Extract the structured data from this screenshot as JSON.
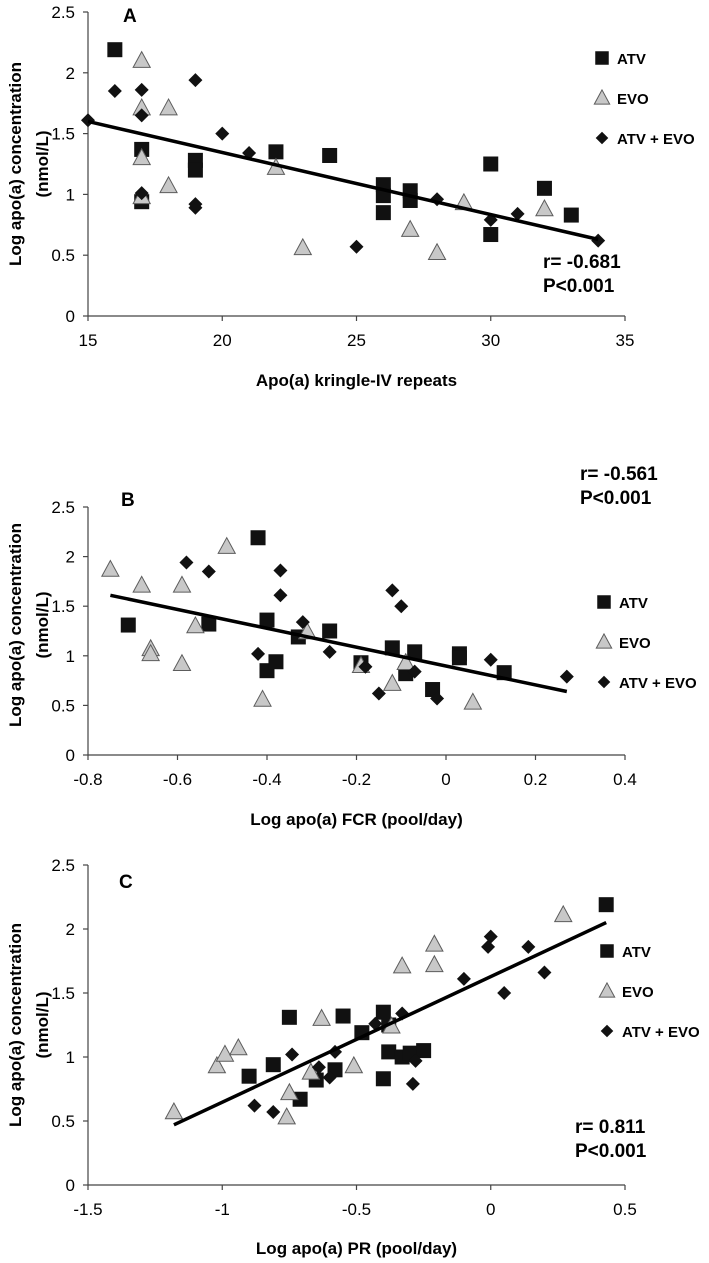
{
  "colors": {
    "atv": "#111111",
    "evo": "#c8c8c8",
    "evo_dark": "#a4a4a4",
    "combo": "#111111",
    "line": "#000000"
  },
  "chart_data": [
    {
      "type": "scatter",
      "panel": "A",
      "xlabel": "Apo(a) kringle-IV repeats",
      "ylabel": [
        "Log apo(a) concentration",
        "(nmol/L)"
      ],
      "xlim": [
        15,
        35
      ],
      "ylim": [
        0,
        2.5
      ],
      "xticks": [
        15,
        20,
        25,
        30,
        35
      ],
      "xtick_labels": [
        "15",
        "20",
        "25",
        "30",
        "35"
      ],
      "yticks": [
        0,
        0.5,
        1,
        1.5,
        2,
        2.5
      ],
      "ytick_labels": [
        "0",
        "0.5",
        "1",
        "1.5",
        "2",
        "2.5"
      ],
      "stats": {
        "r": "r=  -0.681",
        "p": "P<0.001",
        "position": "bottom-right"
      },
      "legend_position": "top-right",
      "trendline": {
        "x": [
          15,
          34
        ],
        "y": [
          1.6,
          0.63
        ]
      },
      "series": [
        {
          "name": "ATV",
          "marker": "square",
          "points": [
            [
              16,
              2.19
            ],
            [
              17,
              1.37
            ],
            [
              17,
              0.94
            ],
            [
              19,
              1.28
            ],
            [
              19,
              1.2
            ],
            [
              22,
              1.35
            ],
            [
              24,
              1.32
            ],
            [
              26,
              1.08
            ],
            [
              26,
              0.99
            ],
            [
              26,
              0.85
            ],
            [
              27,
              1.03
            ],
            [
              27,
              0.95
            ],
            [
              30,
              1.25
            ],
            [
              30,
              0.67
            ],
            [
              32,
              1.05
            ],
            [
              33,
              0.83
            ]
          ]
        },
        {
          "name": "EVO",
          "marker": "triangle",
          "points": [
            [
              17,
              2.1
            ],
            [
              17,
              1.71
            ],
            [
              17,
              1.3
            ],
            [
              17,
              0.98
            ],
            [
              18,
              1.71
            ],
            [
              18,
              1.07
            ],
            [
              22,
              1.22
            ],
            [
              23,
              0.56
            ],
            [
              27,
              0.71
            ],
            [
              28,
              0.52
            ],
            [
              29,
              0.93
            ],
            [
              32,
              0.88
            ]
          ]
        },
        {
          "name": "ATV + EVO",
          "marker": "diamond",
          "points": [
            [
              15,
              1.61
            ],
            [
              16,
              1.85
            ],
            [
              17,
              1.86
            ],
            [
              17,
              1.65
            ],
            [
              17,
              1.01
            ],
            [
              19,
              1.94
            ],
            [
              19,
              0.89
            ],
            [
              19,
              0.92
            ],
            [
              20,
              1.5
            ],
            [
              21,
              1.34
            ],
            [
              25,
              0.57
            ],
            [
              28,
              0.96
            ],
            [
              30,
              0.79
            ],
            [
              31,
              0.84
            ],
            [
              34,
              0.62
            ]
          ]
        }
      ]
    },
    {
      "type": "scatter",
      "panel": "B",
      "xlabel": "Log apo(a) FCR (pool/day)",
      "ylabel": [
        "Log apo(a) concentration",
        "(nmol/L)"
      ],
      "xlim": [
        -0.8,
        0.4
      ],
      "ylim": [
        0,
        2.5
      ],
      "xticks": [
        -0.8,
        -0.6,
        -0.4,
        -0.2,
        0,
        0.2,
        0.4
      ],
      "xtick_labels": [
        "-0.8",
        "-0.6",
        "-0.4",
        "-0.2",
        "0",
        "0.2",
        "0.4"
      ],
      "yticks": [
        0,
        0.5,
        1,
        1.5,
        2,
        2.5
      ],
      "ytick_labels": [
        "0",
        "0.5",
        "1",
        "1.5",
        "2",
        "2.5"
      ],
      "stats": {
        "r": "r=  -0.561",
        "p": "P<0.001",
        "position": "top-right"
      },
      "legend_position": "right",
      "trendline": {
        "x": [
          -0.75,
          0.27
        ],
        "y": [
          1.61,
          0.64
        ]
      },
      "series": [
        {
          "name": "ATV",
          "marker": "square",
          "points": [
            [
              -0.71,
              1.31
            ],
            [
              -0.53,
              1.32
            ],
            [
              -0.42,
              2.19
            ],
            [
              -0.4,
              1.36
            ],
            [
              -0.4,
              0.85
            ],
            [
              -0.38,
              0.94
            ],
            [
              -0.33,
              1.19
            ],
            [
              -0.26,
              1.25
            ],
            [
              -0.19,
              0.93
            ],
            [
              -0.12,
              1.08
            ],
            [
              -0.09,
              0.82
            ],
            [
              -0.07,
              1.04
            ],
            [
              -0.03,
              0.66
            ],
            [
              0.03,
              1.02
            ],
            [
              0.03,
              0.98
            ],
            [
              0.13,
              0.83
            ]
          ]
        },
        {
          "name": "EVO",
          "marker": "triangle",
          "points": [
            [
              -0.75,
              1.87
            ],
            [
              -0.68,
              1.71
            ],
            [
              -0.66,
              1.07
            ],
            [
              -0.66,
              1.02
            ],
            [
              -0.59,
              1.71
            ],
            [
              -0.59,
              0.92
            ],
            [
              -0.56,
              1.3
            ],
            [
              -0.49,
              2.1
            ],
            [
              -0.41,
              0.56
            ],
            [
              -0.31,
              1.24
            ],
            [
              -0.19,
              0.9
            ],
            [
              -0.12,
              0.72
            ],
            [
              -0.09,
              0.93
            ],
            [
              0.06,
              0.53
            ]
          ]
        },
        {
          "name": "ATV + EVO",
          "marker": "diamond",
          "points": [
            [
              -0.58,
              1.94
            ],
            [
              -0.53,
              1.85
            ],
            [
              -0.42,
              1.02
            ],
            [
              -0.37,
              1.86
            ],
            [
              -0.37,
              1.61
            ],
            [
              -0.32,
              1.34
            ],
            [
              -0.26,
              1.04
            ],
            [
              -0.18,
              0.89
            ],
            [
              -0.15,
              0.62
            ],
            [
              -0.12,
              1.66
            ],
            [
              -0.1,
              1.5
            ],
            [
              -0.07,
              0.84
            ],
            [
              -0.02,
              0.57
            ],
            [
              0.1,
              0.96
            ],
            [
              0.27,
              0.79
            ]
          ]
        }
      ]
    },
    {
      "type": "scatter",
      "panel": "C",
      "xlabel": "Log apo(a) PR (pool/day)",
      "ylabel": [
        "Log apo(a) concentration",
        "(nmol/L)"
      ],
      "xlim": [
        -1.5,
        0.5
      ],
      "ylim": [
        0,
        2.5
      ],
      "xticks": [
        -1.5,
        -1,
        -0.5,
        0,
        0.5
      ],
      "xtick_labels": [
        "-1.5",
        "-1",
        "-0.5",
        "0",
        "0.5"
      ],
      "yticks": [
        0,
        0.5,
        1,
        1.5,
        2,
        2.5
      ],
      "ytick_labels": [
        "0",
        "0.5",
        "1",
        "1.5",
        "2",
        "2.5"
      ],
      "stats": {
        "r": "r=  0.811",
        "p": "P<0.001",
        "position": "bottom-right"
      },
      "legend_position": "right",
      "trendline": {
        "x": [
          -1.18,
          0.43
        ],
        "y": [
          0.47,
          2.05
        ]
      },
      "series": [
        {
          "name": "ATV",
          "marker": "square",
          "points": [
            [
              -0.9,
              0.85
            ],
            [
              -0.81,
              0.94
            ],
            [
              -0.75,
              1.31
            ],
            [
              -0.71,
              0.67
            ],
            [
              -0.65,
              0.82
            ],
            [
              -0.58,
              0.9
            ],
            [
              -0.55,
              1.32
            ],
            [
              -0.48,
              1.19
            ],
            [
              -0.4,
              1.35
            ],
            [
              -0.4,
              0.83
            ],
            [
              -0.38,
              1.25
            ],
            [
              -0.38,
              1.04
            ],
            [
              -0.33,
              1.0
            ],
            [
              -0.3,
              1.03
            ],
            [
              -0.25,
              1.05
            ],
            [
              0.43,
              2.19
            ]
          ]
        },
        {
          "name": "EVO",
          "marker": "triangle",
          "points": [
            [
              -1.18,
              0.57
            ],
            [
              -1.02,
              0.93
            ],
            [
              -0.99,
              1.02
            ],
            [
              -0.94,
              1.07
            ],
            [
              -0.76,
              0.53
            ],
            [
              -0.75,
              0.72
            ],
            [
              -0.67,
              0.88
            ],
            [
              -0.63,
              1.3
            ],
            [
              -0.51,
              0.93
            ],
            [
              -0.37,
              1.24
            ],
            [
              -0.33,
              1.71
            ],
            [
              -0.21,
              1.72
            ],
            [
              -0.21,
              1.88
            ],
            [
              0.27,
              2.11
            ]
          ]
        },
        {
          "name": "ATV + EVO",
          "marker": "diamond",
          "points": [
            [
              -0.88,
              0.62
            ],
            [
              -0.81,
              0.57
            ],
            [
              -0.74,
              1.02
            ],
            [
              -0.64,
              0.92
            ],
            [
              -0.6,
              0.84
            ],
            [
              -0.58,
              1.04
            ],
            [
              -0.43,
              1.26
            ],
            [
              -0.33,
              1.34
            ],
            [
              -0.29,
              0.79
            ],
            [
              -0.28,
              0.97
            ],
            [
              -0.1,
              1.61
            ],
            [
              -0.01,
              1.86
            ],
            [
              0.0,
              1.94
            ],
            [
              0.05,
              1.5
            ],
            [
              0.14,
              1.86
            ],
            [
              0.2,
              1.66
            ]
          ]
        }
      ]
    }
  ]
}
